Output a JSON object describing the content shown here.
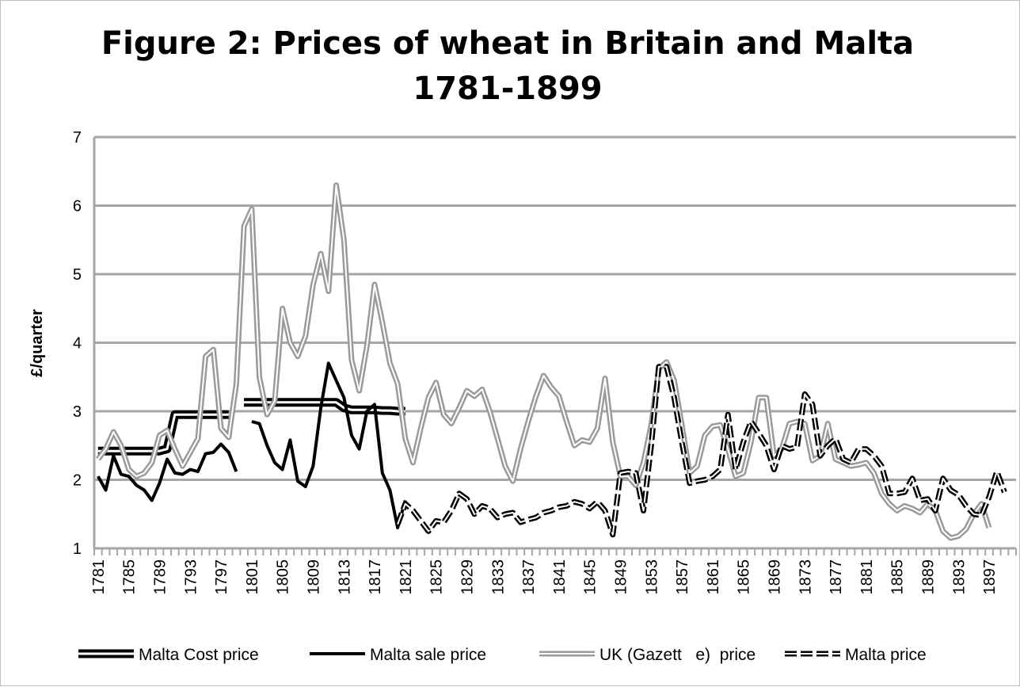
{
  "chart_data": {
    "type": "line",
    "title": "Figure 2: Prices of wheat in Britain and Malta",
    "subtitle": "1781-1899",
    "ylabel": "£/quarter",
    "xlabel": "",
    "ylim": [
      1,
      7
    ],
    "yticks": [
      "1",
      "2",
      "3",
      "4",
      "5",
      "6",
      "7"
    ],
    "grid": "horizontal",
    "legend_position": "bottom",
    "x_tick_labels": [
      "1781",
      "1785",
      "1789",
      "1793",
      "1797",
      "1801",
      "1805",
      "1809",
      "1813",
      "1817",
      "1821",
      "1825",
      "1829",
      "1833",
      "1837",
      "1841",
      "1845",
      "1849",
      "1853",
      "1857",
      "1861",
      "1865",
      "1869",
      "1873",
      "1877",
      "1881",
      "1885",
      "1889",
      "1893",
      "1897"
    ],
    "series": [
      {
        "name": "Malta Cost price",
        "style": "double-black",
        "start_year": 1781,
        "values": [
          2.42,
          2.42,
          2.42,
          2.42,
          2.42,
          2.42,
          2.42,
          2.42,
          2.42,
          2.45,
          2.95,
          2.95,
          2.95,
          2.95,
          2.95,
          2.95,
          2.95,
          2.95,
          null,
          3.13,
          3.13,
          3.13,
          3.13,
          3.13,
          3.13,
          3.13,
          3.13,
          3.13,
          3.13,
          3.13,
          3.13,
          3.13,
          3.05,
          3.02,
          3.02,
          3.02,
          3.02,
          3.01,
          3.01,
          3.0,
          3.0
        ]
      },
      {
        "name": "Malta sale price",
        "style": "solid-black",
        "start_year": 1781,
        "values": [
          2.05,
          1.85,
          2.35,
          2.08,
          2.05,
          1.92,
          1.85,
          1.7,
          1.95,
          2.3,
          2.1,
          2.08,
          2.15,
          2.12,
          2.38,
          2.4,
          2.52,
          2.4,
          2.12,
          null,
          2.85,
          2.82,
          2.5,
          2.25,
          2.15,
          2.58,
          1.98,
          1.9,
          2.2,
          3.05,
          3.7,
          3.45,
          3.2,
          2.65,
          2.45,
          3.0,
          3.1,
          2.1,
          1.85,
          1.3,
          1.7
        ]
      },
      {
        "name": "UK (Gazett   e)  price",
        "style": "double-gray",
        "start_year": 1781,
        "values": [
          2.3,
          2.45,
          2.7,
          2.5,
          2.15,
          2.05,
          2.1,
          2.25,
          2.65,
          2.72,
          2.45,
          2.2,
          2.4,
          2.6,
          3.8,
          3.9,
          2.75,
          2.62,
          3.4,
          5.7,
          5.95,
          3.5,
          2.95,
          3.15,
          4.5,
          4.0,
          3.8,
          4.1,
          4.85,
          5.3,
          4.75,
          6.3,
          5.5,
          3.75,
          3.3,
          3.95,
          4.85,
          4.3,
          3.7,
          3.4,
          2.6,
          2.25,
          2.75,
          3.2,
          3.42,
          2.95,
          2.82,
          3.05,
          3.3,
          3.22,
          3.32,
          3.0,
          2.6,
          2.2,
          1.98,
          2.45,
          2.85,
          3.22,
          3.52,
          3.35,
          3.22,
          2.85,
          2.5,
          2.58,
          2.55,
          2.75,
          3.48,
          2.55,
          2.05,
          2.05,
          1.92,
          2.25,
          2.8,
          3.62,
          3.72,
          3.45,
          2.8,
          2.1,
          2.2,
          2.65,
          2.78,
          2.8,
          2.45,
          2.05,
          2.1,
          2.55,
          3.2,
          3.2,
          2.35,
          2.45,
          2.82,
          2.85,
          2.82,
          2.28,
          2.35,
          2.82,
          2.3,
          2.25,
          2.2,
          2.22,
          2.25,
          2.1,
          1.8,
          1.65,
          1.55,
          1.62,
          1.58,
          1.52,
          1.65,
          1.55,
          1.25,
          1.15,
          1.18,
          1.28,
          1.5,
          1.65,
          1.3
        ]
      },
      {
        "name": "Malta price",
        "style": "dashed-black",
        "start_year": 1781,
        "values": [
          null,
          null,
          null,
          null,
          null,
          null,
          null,
          null,
          null,
          null,
          null,
          null,
          null,
          null,
          null,
          null,
          null,
          null,
          null,
          null,
          null,
          null,
          null,
          null,
          null,
          null,
          null,
          null,
          null,
          null,
          null,
          null,
          null,
          null,
          null,
          null,
          null,
          null,
          null,
          1.35,
          1.65,
          1.55,
          1.4,
          1.25,
          1.4,
          1.38,
          1.55,
          1.8,
          1.72,
          1.5,
          1.62,
          1.58,
          1.45,
          1.5,
          1.52,
          1.38,
          1.42,
          1.45,
          1.52,
          1.55,
          1.6,
          1.62,
          1.68,
          1.65,
          1.58,
          1.68,
          1.55,
          1.2,
          2.1,
          2.12,
          2.1,
          1.55,
          2.5,
          3.65,
          3.65,
          3.2,
          2.55,
          1.95,
          1.98,
          2.0,
          2.05,
          2.15,
          2.95,
          2.15,
          2.55,
          2.85,
          2.68,
          2.5,
          2.15,
          2.5,
          2.45,
          2.48,
          3.25,
          3.1,
          2.35,
          2.5,
          2.6,
          2.3,
          2.25,
          2.45,
          2.45,
          2.35,
          2.2,
          1.8,
          1.8,
          1.82,
          2.02,
          1.7,
          1.72,
          1.55,
          2.02,
          1.85,
          1.78,
          1.62,
          1.5,
          1.48,
          1.75,
          2.12,
          1.82
        ]
      }
    ]
  }
}
